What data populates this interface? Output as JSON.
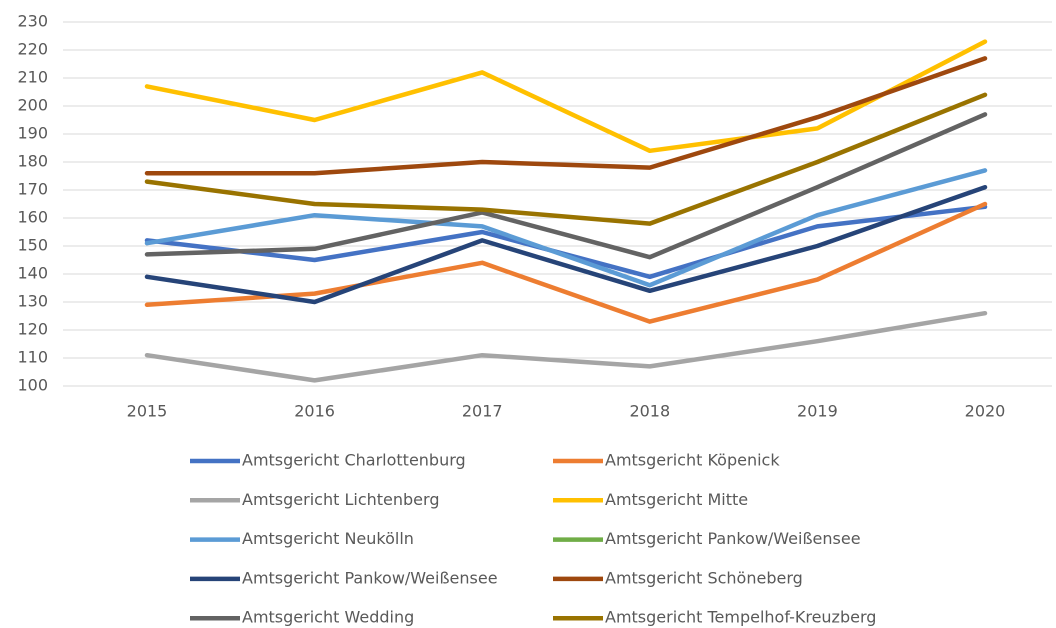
{
  "chart_data": {
    "type": "line",
    "categories": [
      "2015",
      "2016",
      "2017",
      "2018",
      "2019",
      "2020"
    ],
    "ylim": [
      100,
      230
    ],
    "yticks": [
      100,
      110,
      120,
      130,
      140,
      150,
      160,
      170,
      180,
      190,
      200,
      210,
      220,
      230
    ],
    "grid": true,
    "legend": "bottom",
    "series": [
      {
        "name": "Amtsgericht Charlottenburg",
        "color": "#4472c4",
        "values": [
          152,
          145,
          155,
          139,
          157,
          164
        ]
      },
      {
        "name": "Amtsgericht Köpenick",
        "color": "#ed7d31",
        "values": [
          129,
          133,
          144,
          123,
          138,
          165
        ]
      },
      {
        "name": "Amtsgericht Lichtenberg",
        "color": "#a5a5a5",
        "values": [
          111,
          102,
          111,
          107,
          116,
          126
        ]
      },
      {
        "name": "Amtsgericht Mitte",
        "color": "#ffc000",
        "values": [
          207,
          195,
          212,
          184,
          192,
          223
        ]
      },
      {
        "name": "Amtsgericht Neukölln",
        "color": "#5b9bd5",
        "values": [
          151,
          161,
          157,
          136,
          161,
          177
        ]
      },
      {
        "name": "Amtsgericht Pankow/Weißensee",
        "color": "#70ad47",
        "values": [
          null,
          null,
          null,
          null,
          null,
          null
        ]
      },
      {
        "name": "Amtsgericht Pankow/Weißensee",
        "color": "#264478",
        "values": [
          139,
          130,
          152,
          134,
          150,
          171
        ]
      },
      {
        "name": "Amtsgericht Schöneberg",
        "color": "#9e480e",
        "values": [
          176,
          176,
          180,
          178,
          196,
          217
        ]
      },
      {
        "name": "Amtsgericht Wedding",
        "color": "#636363",
        "values": [
          147,
          149,
          162,
          146,
          171,
          197
        ]
      },
      {
        "name": "Amtsgericht Tempelhof-Kreuzberg",
        "color": "#997300",
        "values": [
          173,
          165,
          163,
          158,
          180,
          204
        ]
      }
    ]
  }
}
